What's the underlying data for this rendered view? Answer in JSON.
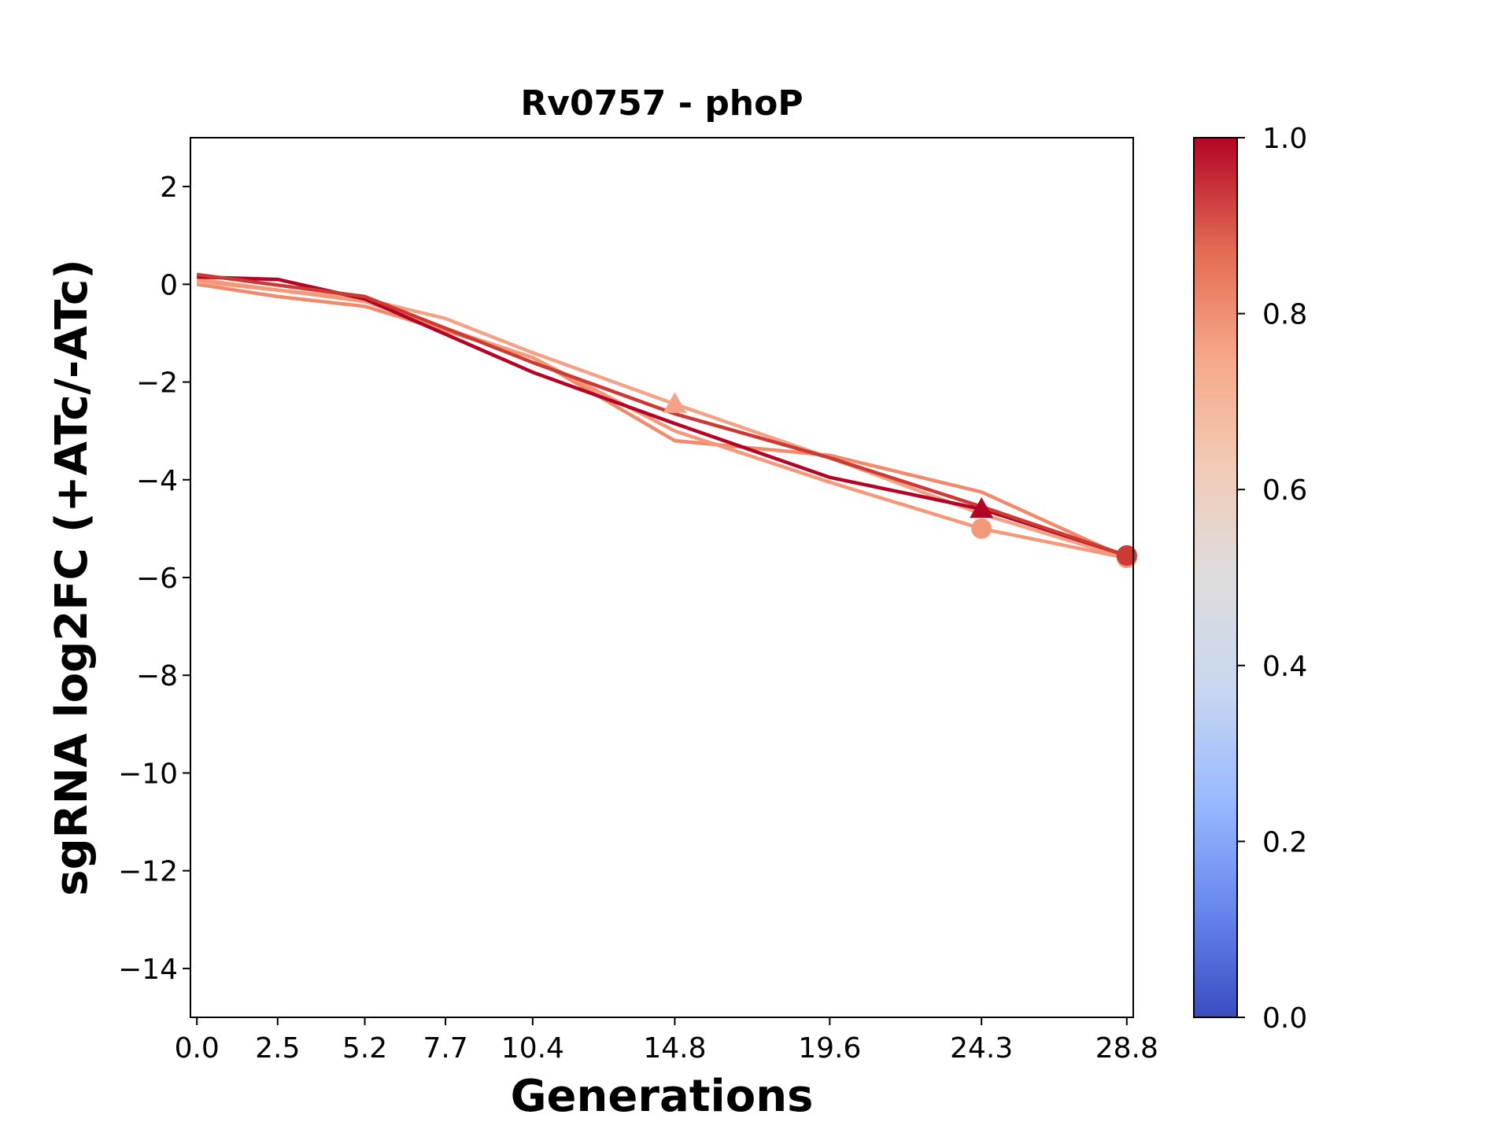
{
  "chart_data": {
    "type": "line",
    "title": "Rv0757 - phoP",
    "xlabel": "Generations",
    "ylabel": "sgRNA log2FC (+ATc/-ATc)",
    "xlim": [
      -0.2,
      29.0
    ],
    "ylim": [
      -15,
      3
    ],
    "xticks": [
      0.0,
      2.5,
      5.2,
      7.7,
      10.4,
      14.8,
      19.6,
      24.3,
      28.8
    ],
    "xtick_labels": [
      "0.0",
      "2.5",
      "5.2",
      "7.7",
      "10.4",
      "14.8",
      "19.6",
      "24.3",
      "28.8"
    ],
    "yticks": [
      2,
      0,
      -2,
      -4,
      -6,
      -8,
      -10,
      -12,
      -14
    ],
    "ytick_labels": [
      "2",
      "0",
      "−2",
      "−4",
      "−6",
      "−8",
      "−10",
      "−12",
      "−14"
    ],
    "grid": false,
    "series": [
      {
        "color": "#f08a6c",
        "marker": "none",
        "x": [
          0.0,
          2.5,
          5.2,
          7.7,
          10.4,
          14.8,
          19.6,
          24.3,
          28.8
        ],
        "y": [
          0.0,
          -0.25,
          -0.45,
          -0.95,
          -1.5,
          -3.2,
          -3.5,
          -4.25,
          -5.6
        ]
      },
      {
        "color": "#f4a287",
        "marker": "triangle",
        "x": [
          0.0,
          5.2,
          7.7,
          10.4,
          14.8,
          19.6,
          24.3,
          28.8
        ],
        "y": [
          0.05,
          -0.3,
          -0.7,
          -1.4,
          -2.45,
          -3.55,
          -4.7,
          -5.6
        ]
      },
      {
        "color": "#f4987a",
        "marker": "circle",
        "x": [
          0.0,
          5.2,
          10.4,
          14.8,
          19.6,
          24.3,
          28.8
        ],
        "y": [
          0.1,
          -0.35,
          -1.5,
          -3.0,
          -4.05,
          -5.0,
          -5.6
        ]
      },
      {
        "color": "#b40426",
        "marker": "triangle",
        "x": [
          0.0,
          2.5,
          5.2,
          10.4,
          14.8,
          19.6,
          24.3,
          28.8
        ],
        "y": [
          0.15,
          0.1,
          -0.3,
          -1.8,
          -2.85,
          -3.95,
          -4.6,
          -5.55
        ]
      },
      {
        "color": "#cc3a35",
        "marker": "circle",
        "x": [
          0.0,
          5.2,
          10.4,
          14.8,
          19.6,
          24.3,
          28.8
        ],
        "y": [
          0.2,
          -0.25,
          -1.6,
          -2.65,
          -3.55,
          -4.55,
          -5.55
        ]
      }
    ],
    "colorbar": {
      "colormap": "coolwarm",
      "range": [
        0.0,
        1.0
      ],
      "ticks": [
        "0.0",
        "0.2",
        "0.4",
        "0.6",
        "0.8",
        "1.0"
      ],
      "stops": [
        "#3b4cc0",
        "#6788ee",
        "#9abbff",
        "#c9d7f0",
        "#dddddd",
        "#f2cbb7",
        "#f7a889",
        "#e26952",
        "#b40426"
      ]
    }
  }
}
